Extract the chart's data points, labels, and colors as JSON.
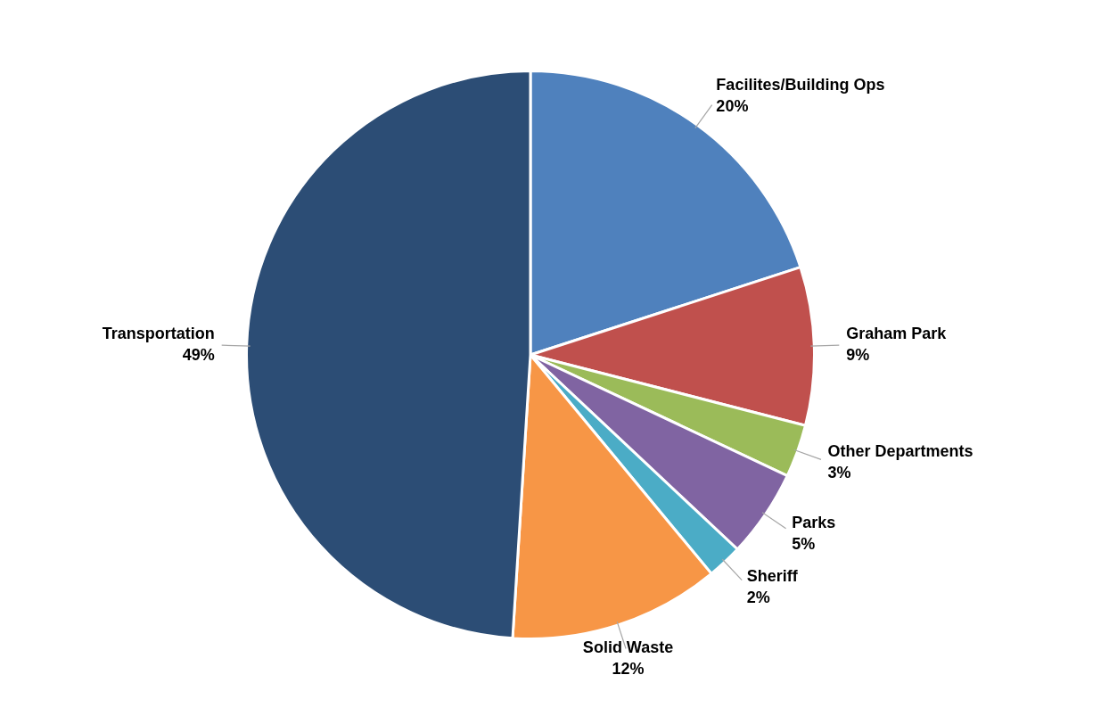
{
  "chart_data": {
    "type": "pie",
    "categories": [
      "Facilites/Building Ops",
      "Graham Park",
      "Other Departments",
      "Parks",
      "Sheriff",
      "Solid Waste",
      "Transportation"
    ],
    "values": [
      20,
      9,
      3,
      5,
      2,
      12,
      49
    ],
    "colors": [
      "#4f81bd",
      "#c0504d",
      "#9bbb59",
      "#8064a2",
      "#4bacc6",
      "#f79646",
      "#2c4d75"
    ],
    "value_labels": [
      "20%",
      "9%",
      "3%",
      "5%",
      "2%",
      "12%",
      "49%"
    ],
    "legend": false
  }
}
